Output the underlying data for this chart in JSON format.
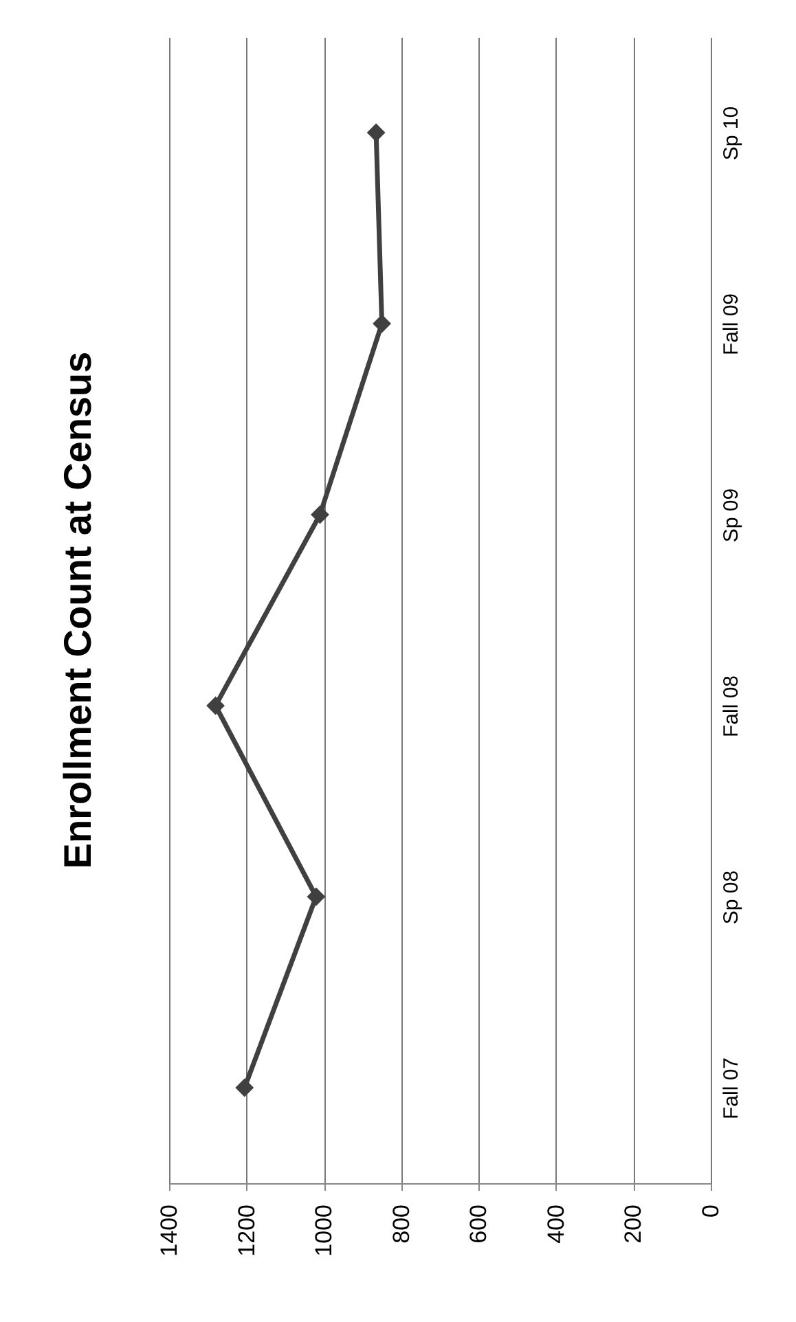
{
  "chart_data": {
    "type": "line",
    "title": "Enrollment Count at Census",
    "orientation": "horizontal",
    "categories": [
      "Sp 10",
      "Fall 09",
      "Sp 09",
      "Fall 08",
      "Sp 08",
      "Fall 07"
    ],
    "series": [
      {
        "color": "#404040",
        "values": [
          865,
          850,
          1010,
          1280,
          1020,
          1205
        ]
      }
    ],
    "xlim": [
      1400,
      0
    ],
    "xticks": [
      1400,
      1200,
      1000,
      800,
      600,
      400,
      200,
      0
    ],
    "grid": "x",
    "marker": "diamond",
    "line_style": "solid"
  }
}
